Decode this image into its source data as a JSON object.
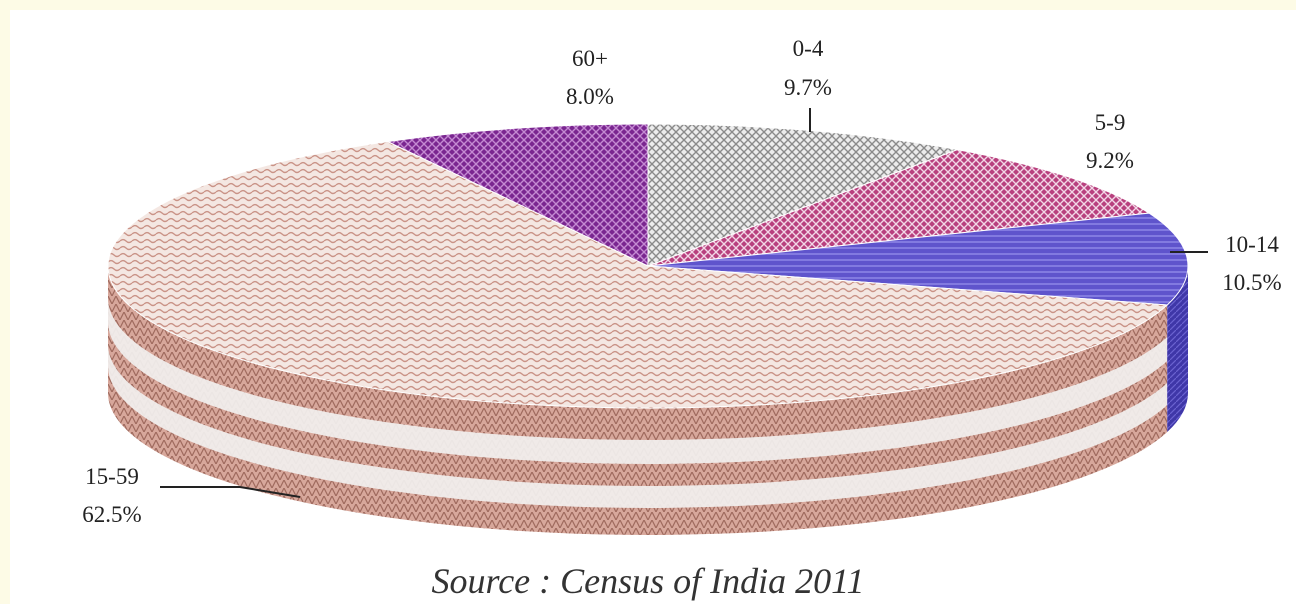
{
  "chart_data": {
    "type": "pie",
    "style": "3d",
    "slices": [
      {
        "label": "0-4",
        "value": 9.7,
        "text": "9.7%",
        "color": "#d4d4d4",
        "pattern": "checker-grey"
      },
      {
        "label": "5-9",
        "value": 9.2,
        "text": "9.2%",
        "color": "#c04c8c",
        "pattern": "dots-magenta"
      },
      {
        "label": "10-14",
        "value": 10.5,
        "text": "10.5%",
        "color": "#6a5ed0",
        "pattern": "lines-blue"
      },
      {
        "label": "15-59",
        "value": 62.5,
        "text": "62.5%",
        "color": "#e8cfc8",
        "pattern": "waves-pink"
      },
      {
        "label": "60+",
        "value": 8.0,
        "text": "8.0%",
        "color": "#8a2a98",
        "pattern": "checker-purple"
      }
    ]
  },
  "source": "Source : Census of India 2011"
}
